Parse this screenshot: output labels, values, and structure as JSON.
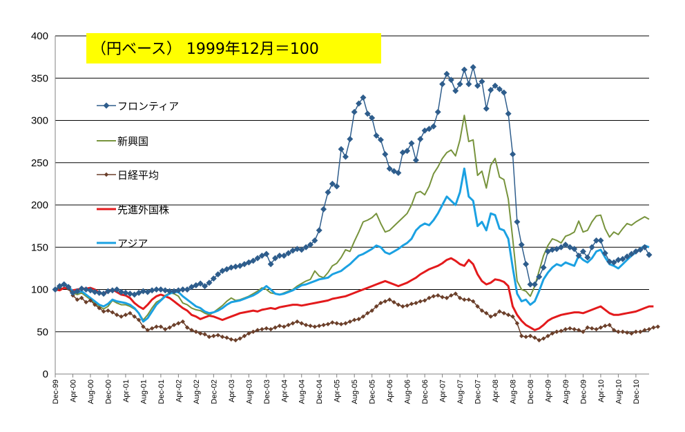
{
  "chart_data": {
    "type": "line",
    "title": "（円ベース） 1999年12月＝100",
    "title_background": "#ffff00",
    "xlabel": "",
    "ylabel": "",
    "ylim": [
      0,
      400
    ],
    "yticks": [
      0,
      50,
      100,
      150,
      200,
      250,
      300,
      350,
      400
    ],
    "grid": true,
    "legend_position": "top-left",
    "x_start": "Dec-99",
    "x_end": "Feb-11",
    "x_tick_labels": [
      "Dec-99",
      "Apr-00",
      "Aug-00",
      "Dec-00",
      "Apr-01",
      "Aug-01",
      "Dec-01",
      "Apr-02",
      "Aug-02",
      "Dec-02",
      "Apr-03",
      "Aug-03",
      "Dec-03",
      "Apr-04",
      "Aug-04",
      "Dec-04",
      "Apr-05",
      "Aug-05",
      "Dec-05",
      "Apr-06",
      "Aug-06",
      "Dec-06",
      "Apr-07",
      "Aug-07",
      "Dec-07",
      "Apr-08",
      "Aug-08",
      "Dec-08",
      "Apr-09",
      "Aug-09",
      "Dec-09",
      "Apr-10",
      "Aug-10",
      "Dec-10"
    ],
    "series": [
      {
        "name": "フロンティア",
        "color": "#2e5d8c",
        "marker": "diamond",
        "values": [
          100,
          104,
          106,
          103,
          96,
          98,
          101,
          100,
          99,
          97,
          96,
          95,
          98,
          99,
          100,
          97,
          96,
          95,
          94,
          96,
          98,
          97,
          99,
          100,
          100,
          99,
          98,
          98,
          99,
          100,
          100,
          103,
          105,
          107,
          104,
          108,
          113,
          118,
          122,
          124,
          126,
          127,
          128,
          130,
          132,
          134,
          137,
          140,
          142,
          130,
          137,
          140,
          140,
          143,
          146,
          148,
          147,
          150,
          153,
          158,
          170,
          195,
          215,
          225,
          222,
          266,
          257,
          278,
          310,
          320,
          327,
          308,
          303,
          282,
          277,
          260,
          243,
          240,
          238,
          262,
          264,
          273,
          253,
          278,
          288,
          290,
          293,
          310,
          343,
          355,
          348,
          335,
          343,
          360,
          343,
          363,
          341,
          346,
          314,
          336,
          341,
          337,
          333,
          308,
          260,
          180,
          153,
          130,
          106,
          106,
          115,
          126,
          145,
          147,
          148,
          150,
          153,
          150,
          148,
          140,
          145,
          138,
          150,
          158,
          158,
          143,
          133,
          132,
          135,
          136,
          139,
          142,
          145,
          147,
          150,
          141
        ]
      },
      {
        "name": "新興国",
        "color": "#77933c",
        "marker": "none",
        "values": [
          100,
          104,
          108,
          103,
          96,
          94,
          96,
          92,
          88,
          84,
          80,
          77,
          80,
          87,
          84,
          82,
          82,
          80,
          77,
          72,
          64,
          70,
          78,
          85,
          88,
          93,
          96,
          95,
          92,
          84,
          82,
          78,
          76,
          75,
          72,
          70,
          73,
          77,
          81,
          86,
          90,
          87,
          88,
          90,
          92,
          95,
          98,
          102,
          100,
          96,
          95,
          94,
          96,
          98,
          100,
          104,
          107,
          110,
          112,
          122,
          116,
          114,
          120,
          128,
          131,
          138,
          147,
          145,
          157,
          168,
          180,
          182,
          185,
          190,
          178,
          168,
          170,
          175,
          180,
          185,
          190,
          200,
          214,
          216,
          212,
          222,
          237,
          245,
          255,
          262,
          265,
          258,
          277,
          306,
          275,
          277,
          235,
          240,
          220,
          247,
          255,
          233,
          230,
          207,
          160,
          110,
          100,
          98,
          92,
          104,
          122,
          140,
          152,
          160,
          158,
          155,
          163,
          165,
          168,
          181,
          168,
          170,
          180,
          187,
          188,
          172,
          162,
          168,
          165,
          172,
          178,
          176,
          180,
          183,
          186,
          183
        ]
      },
      {
        "name": "日経平均",
        "color": "#6b3f2a",
        "marker": "diamond",
        "values": [
          100,
          102,
          106,
          101,
          93,
          88,
          90,
          85,
          87,
          82,
          78,
          74,
          75,
          73,
          70,
          68,
          70,
          72,
          68,
          64,
          56,
          52,
          54,
          56,
          56,
          53,
          55,
          58,
          60,
          62,
          55,
          52,
          50,
          48,
          47,
          44,
          45,
          46,
          44,
          43,
          41,
          40,
          42,
          45,
          48,
          50,
          52,
          53,
          54,
          53,
          55,
          57,
          56,
          58,
          60,
          62,
          60,
          58,
          57,
          56,
          57,
          58,
          59,
          61,
          60,
          59,
          60,
          62,
          64,
          65,
          68,
          72,
          75,
          80,
          84,
          86,
          88,
          85,
          82,
          80,
          81,
          83,
          84,
          86,
          87,
          90,
          92,
          93,
          91,
          90,
          93,
          95,
          90,
          88,
          88,
          86,
          80,
          75,
          72,
          68,
          70,
          74,
          72,
          70,
          68,
          60,
          45,
          44,
          45,
          43,
          40,
          42,
          45,
          48,
          50,
          51,
          53,
          54,
          53,
          52,
          50,
          55,
          54,
          53,
          55,
          57,
          58,
          52,
          50,
          50,
          49,
          48,
          50,
          50,
          52,
          53,
          55,
          56
        ]
      },
      {
        "name": "先進外国株",
        "color": "#e31a1c",
        "marker": "none",
        "values": [
          100,
          99,
          102,
          101,
          99,
          100,
          101,
          101,
          102,
          100,
          96,
          95,
          98,
          100,
          97,
          94,
          93,
          90,
          84,
          80,
          77,
          82,
          88,
          92,
          94,
          92,
          90,
          86,
          82,
          78,
          75,
          70,
          68,
          65,
          67,
          69,
          68,
          66,
          64,
          66,
          68,
          70,
          72,
          73,
          74,
          75,
          74,
          76,
          77,
          78,
          77,
          79,
          80,
          81,
          82,
          82,
          81,
          82,
          83,
          84,
          85,
          86,
          87,
          89,
          90,
          91,
          92,
          94,
          96,
          98,
          100,
          102,
          104,
          106,
          108,
          110,
          108,
          106,
          104,
          106,
          108,
          111,
          114,
          118,
          121,
          124,
          126,
          128,
          131,
          135,
          137,
          134,
          130,
          128,
          135,
          130,
          118,
          110,
          106,
          108,
          112,
          111,
          109,
          104,
          80,
          70,
          63,
          58,
          55,
          52,
          54,
          58,
          63,
          66,
          68,
          70,
          71,
          72,
          73,
          73,
          72,
          74,
          76,
          78,
          80,
          76,
          72,
          70,
          70,
          71,
          72,
          73,
          74,
          76,
          78,
          80,
          80
        ]
      },
      {
        "name": "アジア",
        "color": "#1ba1e2",
        "marker": "none",
        "values": [
          100,
          103,
          108,
          103,
          98,
          96,
          98,
          94,
          90,
          86,
          82,
          80,
          83,
          88,
          86,
          85,
          84,
          82,
          78,
          72,
          62,
          66,
          74,
          82,
          87,
          92,
          95,
          97,
          97,
          92,
          88,
          84,
          80,
          78,
          74,
          72,
          73,
          75,
          78,
          82,
          85,
          86,
          87,
          89,
          91,
          93,
          96,
          100,
          104,
          100,
          95,
          94,
          95,
          97,
          99,
          102,
          105,
          106,
          108,
          110,
          112,
          113,
          114,
          118,
          120,
          122,
          126,
          130,
          135,
          140,
          142,
          145,
          148,
          152,
          150,
          144,
          142,
          145,
          148,
          152,
          155,
          160,
          170,
          175,
          178,
          176,
          182,
          190,
          200,
          210,
          205,
          200,
          215,
          243,
          210,
          205,
          175,
          180,
          170,
          190,
          188,
          172,
          170,
          160,
          126,
          95,
          86,
          88,
          82,
          86,
          98,
          112,
          120,
          126,
          130,
          128,
          132,
          130,
          128,
          140,
          135,
          132,
          137,
          145,
          147,
          138,
          130,
          128,
          125,
          130,
          135,
          140,
          144,
          148,
          152,
          150
        ]
      }
    ]
  }
}
